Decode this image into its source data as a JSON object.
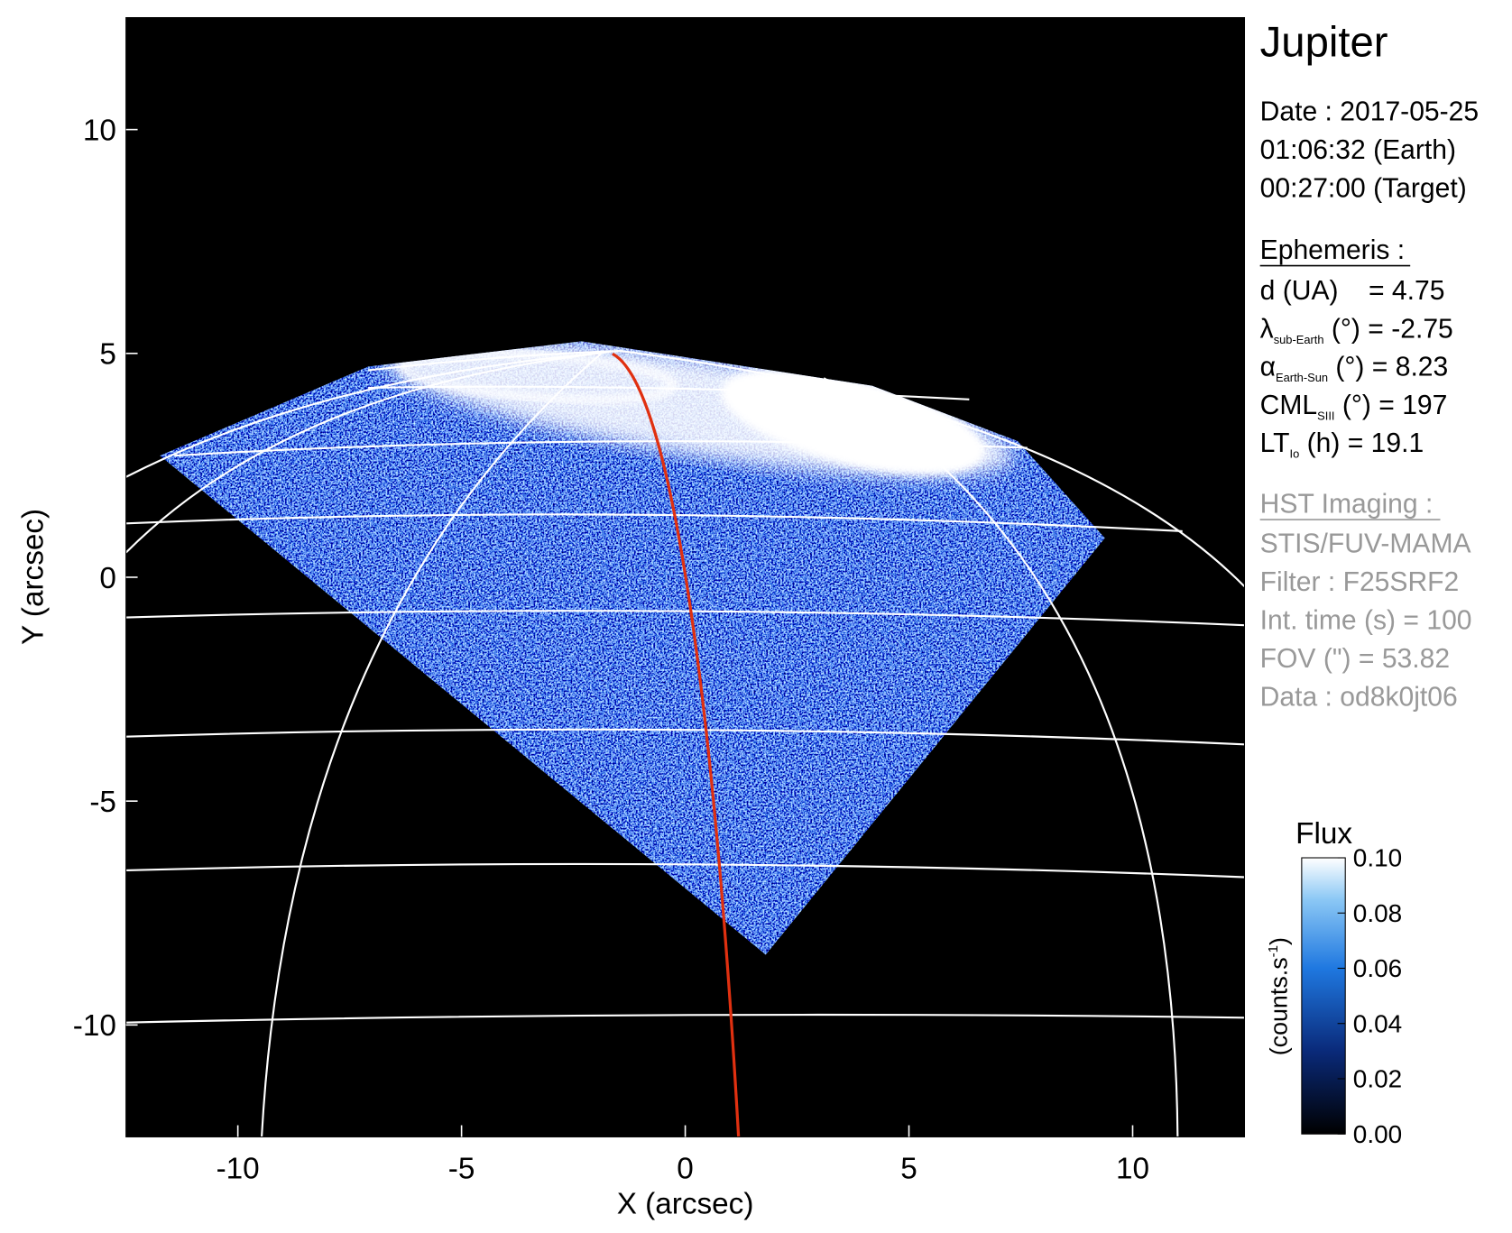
{
  "chart_data": {
    "type": "image",
    "xlabel": "X (arcsec)",
    "ylabel": "Y (arcsec)",
    "xlim": [
      -12.5,
      12.5
    ],
    "ylim": [
      -12.5,
      12.5
    ],
    "xticks": [
      -10,
      -5,
      0,
      5,
      10
    ],
    "yticks": [
      -10,
      -5,
      0,
      5,
      10
    ],
    "colorbar": {
      "title": "Flux",
      "label_parts": [
        "(counts.s",
        "-1",
        ")"
      ],
      "lim": [
        0,
        0.1
      ],
      "ticks": [
        {
          "value": 0,
          "label": "0.00"
        },
        {
          "value": 0.02,
          "label": "0.02"
        },
        {
          "value": 0.04,
          "label": "0.04"
        },
        {
          "value": 0.06,
          "label": "0.06"
        },
        {
          "value": 0.08,
          "label": "0.08"
        },
        {
          "value": 0.1,
          "label": "0.10"
        }
      ]
    }
  },
  "info": {
    "title": "Jupiter",
    "date_lines": [
      "Date : 2017-05-25",
      "01:06:32 (Earth)",
      "00:27:00 (Target)"
    ],
    "ephemeris_heading": "Ephemeris :",
    "ephemeris": [
      {
        "text": "d (UA)    = 4.75"
      },
      {
        "symbol": "λ",
        "sub": "sub-Earth",
        "text": " (°) = -2.75"
      },
      {
        "symbol": "α",
        "sub": "Earth-Sun",
        "text": " (°) = 8.23"
      },
      {
        "symbol": "CML",
        "sub": "SIII",
        "text": " (°) = 197"
      },
      {
        "symbol": "LT",
        "sub": "Io",
        "text": " (h) = 19.1"
      }
    ],
    "hst_heading": "HST Imaging :",
    "hst_lines": [
      "STIS/FUV-MAMA",
      "Filter : F25SRF2",
      "Int. time (s) = 100",
      "FOV (\") = 53.82",
      "Data : od8k0jt06"
    ]
  }
}
